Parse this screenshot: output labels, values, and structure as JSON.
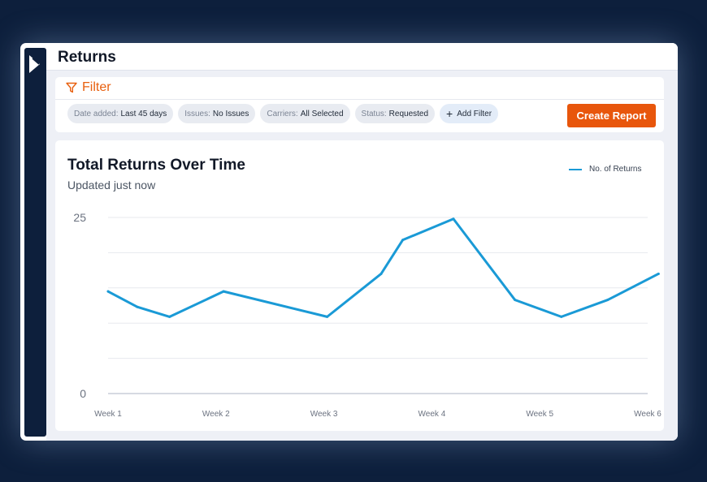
{
  "header": {
    "title": "Returns"
  },
  "filter": {
    "title": "Filter",
    "chips": [
      {
        "key": "Date added:",
        "value": "Last 45 days"
      },
      {
        "key": "Issues:",
        "value": "No Issues"
      },
      {
        "key": "Carriers:",
        "value": "All Selected"
      },
      {
        "key": "Status:",
        "value": "Requested"
      }
    ],
    "add_label": "Add Filter",
    "create_label": "Create Report"
  },
  "colors": {
    "accent": "#e8560c",
    "line": "#1a9ad6",
    "navy": "#0d1f3c"
  },
  "chart_data": {
    "type": "line",
    "title": "Total Returns Over Time",
    "subtitle": "Updated just now",
    "categories": [
      "Week 1",
      "Week 2",
      "Week 3",
      "Week 4",
      "Week 5",
      "Week 6"
    ],
    "ytick_labels": [
      "0",
      "25"
    ],
    "ylim": [
      0,
      25
    ],
    "grid": true,
    "legend_position": "top-right",
    "series": [
      {
        "name": "No. of Returns",
        "x": [
          1,
          1.27,
          1.57,
          2.07,
          3.03,
          3.53,
          3.73,
          4.2,
          4.77,
          5.2,
          5.63,
          6.1
        ],
        "values": [
          14.5,
          12.3,
          10.9,
          14.5,
          10.9,
          17,
          21.8,
          24.8,
          13.3,
          10.9,
          13.3,
          17
        ]
      }
    ]
  }
}
